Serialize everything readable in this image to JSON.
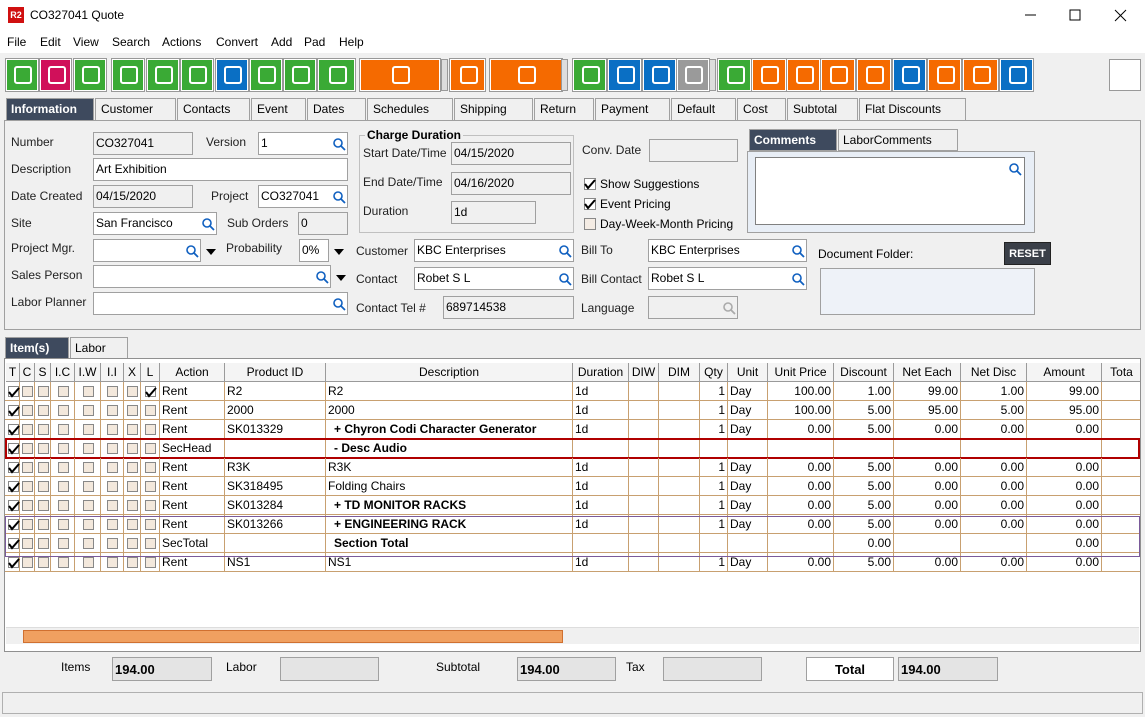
{
  "window": {
    "app_icon": "R2",
    "title": "CO327041 Quote"
  },
  "menu": [
    "File",
    "Edit",
    "View",
    "Search",
    "Actions",
    "Convert",
    "Add",
    "Pad",
    "Help"
  ],
  "tabs": [
    "Information",
    "Customer",
    "Contacts",
    "Event",
    "Dates",
    "Schedules",
    "Shipping",
    "Return",
    "Payment",
    "Default",
    "Cost",
    "Subtotal",
    "Flat Discounts"
  ],
  "form": {
    "number": {
      "label": "Number",
      "value": "CO327041"
    },
    "version": {
      "label": "Version",
      "value": "1"
    },
    "description": {
      "label": "Description",
      "value": "Art Exhibition"
    },
    "date_created": {
      "label": "Date Created",
      "value": "04/15/2020"
    },
    "project": {
      "label": "Project",
      "value": "CO327041"
    },
    "site": {
      "label": "Site",
      "value": "San Francisco"
    },
    "sub_orders": {
      "label": "Sub Orders",
      "value": "0"
    },
    "project_mgr": {
      "label": "Project Mgr."
    },
    "probability": {
      "label": "Probability",
      "value": "0%"
    },
    "sales_person": {
      "label": "Sales Person"
    },
    "labor_planner": {
      "label": "Labor Planner"
    },
    "start_date": {
      "label": "Start Date/Time",
      "value": "04/15/2020"
    },
    "end_date": {
      "label": "End Date/Time",
      "value": "04/16/2020"
    },
    "duration": {
      "label": "Duration",
      "value": "1d"
    },
    "customer": {
      "label": "Customer",
      "value": "KBC Enterprises"
    },
    "contact": {
      "label": "Contact",
      "value": "Robet S L"
    },
    "contact_tel": {
      "label": "Contact Tel #",
      "value": "689714538"
    },
    "conv_date": {
      "label": "Conv. Date"
    },
    "bill_to": {
      "label": "Bill To",
      "value": "KBC Enterprises"
    },
    "bill_contact": {
      "label": "Bill Contact",
      "value": "Robet S L"
    },
    "language": {
      "label": "Language"
    }
  },
  "charge_duration_title": "Charge Duration",
  "options": [
    {
      "label": "Show Suggestions",
      "checked": true
    },
    {
      "label": "Event Pricing",
      "checked": true
    },
    {
      "label": "Day-Week-Month Pricing",
      "checked": false
    }
  ],
  "comment_tabs": [
    "Comments",
    "LaborComments"
  ],
  "document_folder_label": "Document Folder:",
  "reset_button": "RESET",
  "lower_tabs": [
    "Item(s)",
    "Labor"
  ],
  "grid": {
    "columns": [
      "T",
      "C",
      "S",
      "I.C",
      "I.W",
      "I.I",
      "X",
      "L",
      "Action",
      "Product ID",
      "Description",
      "Duration",
      "DIW",
      "DIM",
      "Qty",
      "Unit",
      "Unit Price",
      "Discount",
      "Net Each",
      "Net Disc",
      "Amount",
      "Tota"
    ],
    "rows": [
      {
        "checks": [
          true,
          false,
          false,
          false,
          false,
          false,
          false,
          true
        ],
        "cells": [
          "Rent",
          "R2",
          "R2",
          "1d",
          null,
          null,
          "1",
          "Day",
          "100.00",
          "1.00",
          "99.00",
          "1.00",
          "99.00",
          null
        ]
      },
      {
        "checks": [
          true,
          false,
          false,
          false,
          false,
          false,
          false,
          false
        ],
        "cells": [
          "Rent",
          "2000",
          "2000",
          "1d",
          null,
          null,
          "1",
          "Day",
          "100.00",
          "5.00",
          "95.00",
          "5.00",
          "95.00",
          null
        ]
      },
      {
        "checks": [
          true,
          false,
          false,
          false,
          false,
          false,
          false,
          false
        ],
        "bold": true,
        "cells": [
          "Rent",
          "SK013329",
          "+  Chyron Codi Character Generator",
          "1d",
          null,
          null,
          "1",
          "Day",
          "0.00",
          "5.00",
          "0.00",
          "0.00",
          "0.00",
          null
        ]
      },
      {
        "checks": [
          true,
          false,
          false,
          false,
          false,
          false,
          false,
          false
        ],
        "bold": true,
        "outline": "#b00000",
        "cells": [
          "SecHead",
          null,
          "-  Desc Audio",
          null,
          null,
          null,
          null,
          null,
          null,
          null,
          null,
          null,
          null,
          null
        ]
      },
      {
        "checks": [
          true,
          false,
          false,
          false,
          false,
          false,
          false,
          false
        ],
        "cells": [
          "Rent",
          "R3K",
          "R3K",
          "1d",
          null,
          null,
          "1",
          "Day",
          "0.00",
          "5.00",
          "0.00",
          "0.00",
          "0.00",
          null
        ]
      },
      {
        "checks": [
          true,
          false,
          false,
          false,
          false,
          false,
          false,
          false
        ],
        "cells": [
          "Rent",
          "SK318495",
          "Folding Chairs",
          "1d",
          null,
          null,
          "1",
          "Day",
          "0.00",
          "5.00",
          "0.00",
          "0.00",
          "0.00",
          null
        ]
      },
      {
        "checks": [
          true,
          false,
          false,
          false,
          false,
          false,
          false,
          false
        ],
        "bold": true,
        "cells": [
          "Rent",
          "SK013284",
          "+  TD MONITOR RACKS",
          "1d",
          null,
          null,
          "1",
          "Day",
          "0.00",
          "5.00",
          "0.00",
          "0.00",
          "0.00",
          null
        ]
      },
      {
        "checks": [
          true,
          false,
          false,
          false,
          false,
          false,
          false,
          false
        ],
        "bold": true,
        "cells": [
          "Rent",
          "SK013266",
          "+  ENGINEERING RACK",
          "1d",
          null,
          null,
          "1",
          "Day",
          "0.00",
          "5.00",
          "0.00",
          "0.00",
          "0.00",
          null
        ]
      },
      {
        "checks": [
          true,
          false,
          false,
          false,
          false,
          false,
          false,
          false
        ],
        "bold": true,
        "cells": [
          "SecTotal",
          null,
          "Section Total",
          null,
          null,
          null,
          null,
          null,
          null,
          "0.00",
          null,
          null,
          "0.00",
          null
        ]
      },
      {
        "checks": [
          true,
          false,
          false,
          false,
          false,
          false,
          false,
          false
        ],
        "cells": [
          "Rent",
          "NS1",
          "NS1",
          "1d",
          null,
          null,
          "1",
          "Day",
          "0.00",
          "5.00",
          "0.00",
          "0.00",
          "0.00",
          null
        ]
      }
    ]
  },
  "totals": [
    {
      "label": "Items",
      "value": "194.00"
    },
    {
      "label": "Labor"
    },
    {
      "label": "Subtotal",
      "value": "194.00"
    },
    {
      "label": "Tax"
    },
    {
      "label": "Total",
      "value": "194.00"
    }
  ]
}
